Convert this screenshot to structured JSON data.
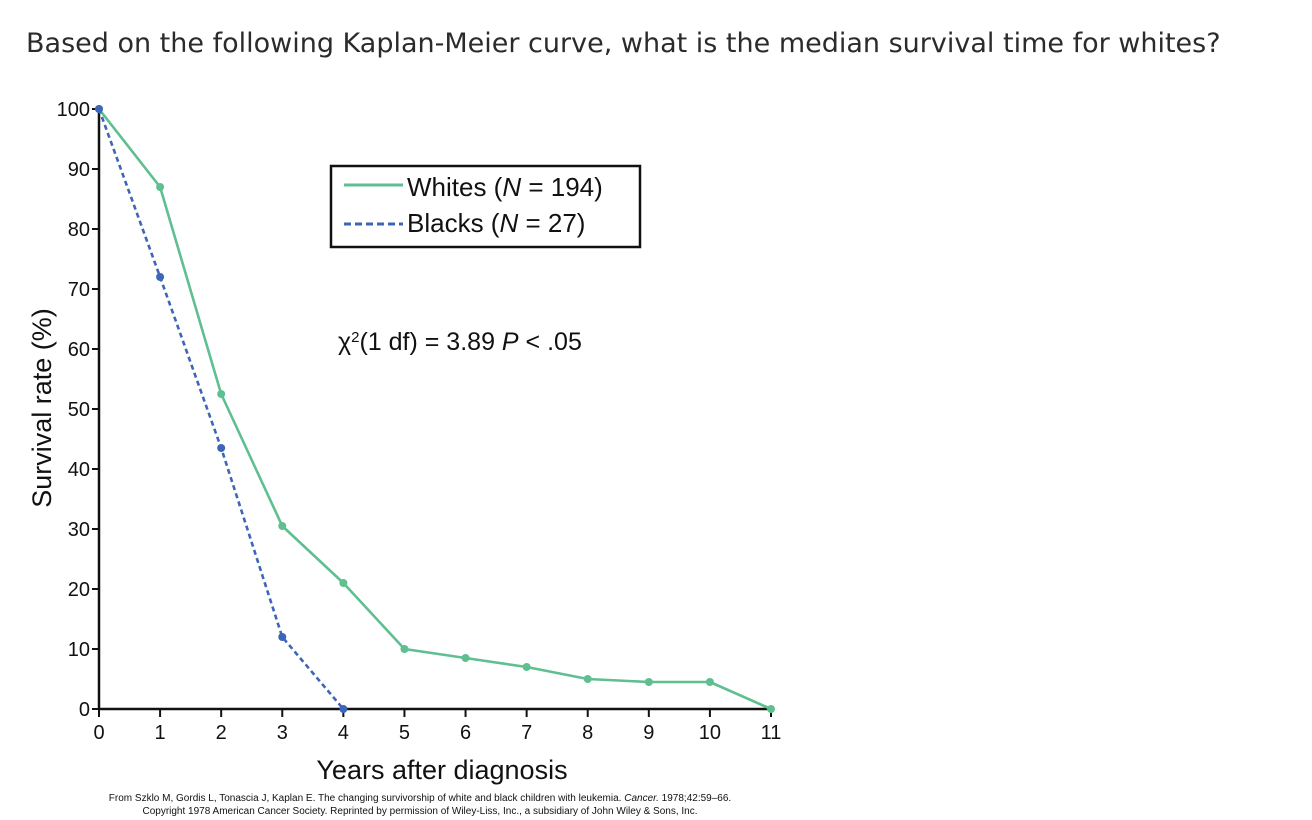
{
  "question": "Based on the following Kaplan-Meier curve, what is the median survival time for whites?",
  "chart_data": {
    "type": "line",
    "xlabel": "Years after diagnosis",
    "ylabel": "Survival rate (%)",
    "xlim": [
      0,
      11
    ],
    "ylim": [
      0,
      100
    ],
    "x_ticks": [
      "0",
      "1",
      "2",
      "3",
      "4",
      "5",
      "6",
      "7",
      "8",
      "9",
      "10",
      "11"
    ],
    "y_ticks": [
      "0",
      "10",
      "20",
      "30",
      "40",
      "50",
      "60",
      "70",
      "80",
      "90",
      "100"
    ],
    "legend_position": "top-center",
    "series": [
      {
        "name_prefix": "Whites (",
        "name_var": "N",
        "name_suffix": " = 194)",
        "style": "solid",
        "color": "#5fbf90",
        "x": [
          0,
          1,
          2,
          3,
          4,
          5,
          6,
          7,
          8,
          9,
          10,
          11
        ],
        "y": [
          100,
          87,
          52.5,
          30.5,
          21,
          10,
          8.5,
          7,
          5,
          4.5,
          4.5,
          0
        ]
      },
      {
        "name_prefix": "Blacks (",
        "name_var": "N",
        "name_suffix": " = 27)",
        "style": "dashed",
        "color": "#3d66b8",
        "x": [
          0,
          1,
          2,
          3,
          4
        ],
        "y": [
          100,
          72,
          43.5,
          12,
          0
        ]
      }
    ],
    "annotation": {
      "chi": "χ",
      "sup": "2",
      "rest": "(1 df) = 3.89 ",
      "p": "P",
      "tail": " < .05"
    }
  },
  "citation": {
    "line1_prefix": "From Szklo M, Gordis L, Tonascia J, Kaplan E. The changing survivorship of white and black children with leukemia. ",
    "journal": "Cancer.",
    "line1_suffix": " 1978;42:59–66.",
    "line2": "Copyright 1978 American Cancer Society. Reprinted by permission of Wiley-Liss, Inc., a subsidiary of John Wiley & Sons, Inc."
  }
}
